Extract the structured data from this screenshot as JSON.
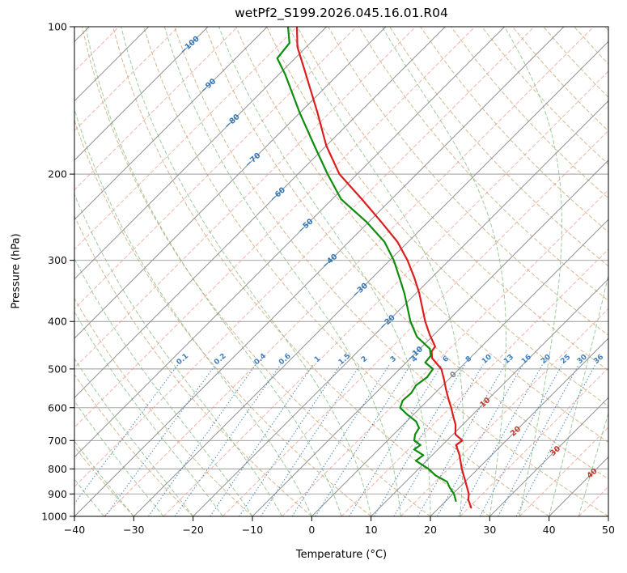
{
  "chart_data": {
    "type": "line",
    "subtype": "skew-t-log-p",
    "title": "wetPf2_S199.2026.045.16.01.R04",
    "xlabel": "Temperature (°C)",
    "ylabel": "Pressure (hPa)",
    "xlim": [
      -40,
      50
    ],
    "pressure_lim": [
      100,
      1000
    ],
    "skew_degrees": 45,
    "grid": true,
    "x_ticks": [
      -40,
      -30,
      -20,
      -10,
      0,
      10,
      20,
      30,
      40,
      50
    ],
    "x_tick_labels": [
      "−40",
      "−30",
      "−20",
      "−10",
      "0",
      "10",
      "20",
      "30",
      "40",
      "50"
    ],
    "y_ticks": [
      100,
      200,
      300,
      400,
      500,
      600,
      700,
      800,
      900,
      1000
    ],
    "y_tick_labels": [
      "100",
      "200",
      "300",
      "400",
      "500",
      "600",
      "700",
      "800",
      "900",
      "1000"
    ],
    "series": [
      {
        "name": "temperature",
        "color": "#dd1c1c",
        "width": 2.2,
        "points": [
          [
            100,
            -85
          ],
          [
            110,
            -81.5
          ],
          [
            125,
            -75.5
          ],
          [
            150,
            -67
          ],
          [
            175,
            -60
          ],
          [
            200,
            -53
          ],
          [
            225,
            -45
          ],
          [
            250,
            -38
          ],
          [
            275,
            -31.8
          ],
          [
            300,
            -27
          ],
          [
            325,
            -23
          ],
          [
            350,
            -19.5
          ],
          [
            375,
            -16.5
          ],
          [
            400,
            -13.7
          ],
          [
            425,
            -10.8
          ],
          [
            450,
            -7.8
          ],
          [
            460,
            -7.6
          ],
          [
            475,
            -6.4
          ],
          [
            500,
            -3.0
          ],
          [
            525,
            -0.8
          ],
          [
            550,
            1.2
          ],
          [
            575,
            3.2
          ],
          [
            600,
            5.2
          ],
          [
            625,
            7.0
          ],
          [
            650,
            8.8
          ],
          [
            680,
            10.4
          ],
          [
            700,
            12.6
          ],
          [
            715,
            12.3
          ],
          [
            750,
            14.6
          ],
          [
            800,
            17.3
          ],
          [
            850,
            20.1
          ],
          [
            900,
            22.7
          ],
          [
            925,
            23.6
          ],
          [
            950,
            24.9
          ],
          [
            960,
            25.4
          ]
        ]
      },
      {
        "name": "dewpoint",
        "color": "#0e8c0e",
        "width": 2.2,
        "points": [
          [
            100,
            -86.5
          ],
          [
            108,
            -83.5
          ],
          [
            116,
            -83.0
          ],
          [
            125,
            -79
          ],
          [
            150,
            -70
          ],
          [
            175,
            -62
          ],
          [
            200,
            -55
          ],
          [
            225,
            -48.5
          ],
          [
            250,
            -40.5
          ],
          [
            275,
            -34
          ],
          [
            300,
            -29.3
          ],
          [
            325,
            -25.5
          ],
          [
            350,
            -22
          ],
          [
            375,
            -19
          ],
          [
            400,
            -16.2
          ],
          [
            430,
            -12.5
          ],
          [
            455,
            -8.3
          ],
          [
            470,
            -7.0
          ],
          [
            485,
            -6.8
          ],
          [
            500,
            -4.4
          ],
          [
            520,
            -4.0
          ],
          [
            540,
            -4.5
          ],
          [
            560,
            -4.0
          ],
          [
            580,
            -4.2
          ],
          [
            600,
            -3.4
          ],
          [
            620,
            -1.0
          ],
          [
            640,
            1.6
          ],
          [
            660,
            3.2
          ],
          [
            680,
            3.6
          ],
          [
            700,
            4.5
          ],
          [
            715,
            6.3
          ],
          [
            730,
            6.0
          ],
          [
            750,
            8.5
          ],
          [
            770,
            8.2
          ],
          [
            800,
            11.7
          ],
          [
            825,
            14.0
          ],
          [
            850,
            17.0
          ],
          [
            875,
            18.5
          ],
          [
            900,
            20.2
          ],
          [
            930,
            21.7
          ]
        ]
      }
    ],
    "background_lines": {
      "grid_color": "#9a9a9a",
      "isotherms_major": {
        "start": -120,
        "end": 50,
        "step": 10,
        "color": "#909090",
        "width": 1
      },
      "isotherms_minor": {
        "start": -115,
        "end": 45,
        "step": 10,
        "color": "#f09a90",
        "width": 1,
        "dash": "5,2.5",
        "opacity": 0.75
      },
      "dry_adiabats": {
        "start": -40,
        "end": 200,
        "step": 10,
        "color": "#c39b62",
        "dash": "5,2.5",
        "opacity": 0.7
      },
      "moist_adiabats": {
        "start": -40,
        "end": 50,
        "step": 5,
        "color": "#7cbb7c",
        "dash": "5,2.5",
        "opacity": 0.75
      },
      "mixing_ratio": {
        "values": [
          0.1,
          0.2,
          0.4,
          0.6,
          1,
          1.5,
          2,
          3,
          4,
          6,
          8,
          10,
          13,
          16,
          20,
          25,
          30,
          36
        ],
        "labels": [
          "0.1",
          "0.2",
          "0.4",
          "0.6",
          "1",
          "1.5",
          "2",
          "3",
          "4",
          "6",
          "8",
          "10",
          "13",
          "16",
          "20",
          "25",
          "30",
          "36"
        ],
        "top_p": 490,
        "label_p": 477,
        "color": "#3f7fbd",
        "dash": "1.4,2.4",
        "opacity": 0.9
      }
    },
    "labels": {
      "isotherm_color_negative": "#2f76b8",
      "isotherm_color_zero": "#7f7f7f",
      "isotherm_color_positive": "#c0392b",
      "isotherms": [
        [
          -100,
          109
        ],
        [
          -90,
          132
        ],
        [
          -80,
          156
        ],
        [
          -70,
          187
        ],
        [
          -60,
          220
        ],
        [
          -50,
          255
        ],
        [
          -40,
          301
        ],
        [
          -30,
          345
        ],
        [
          -20,
          401
        ],
        [
          -10,
          465
        ],
        [
          0,
          514
        ],
        [
          10,
          585
        ],
        [
          20,
          670
        ],
        [
          30,
          735
        ],
        [
          40,
          817
        ]
      ]
    }
  }
}
